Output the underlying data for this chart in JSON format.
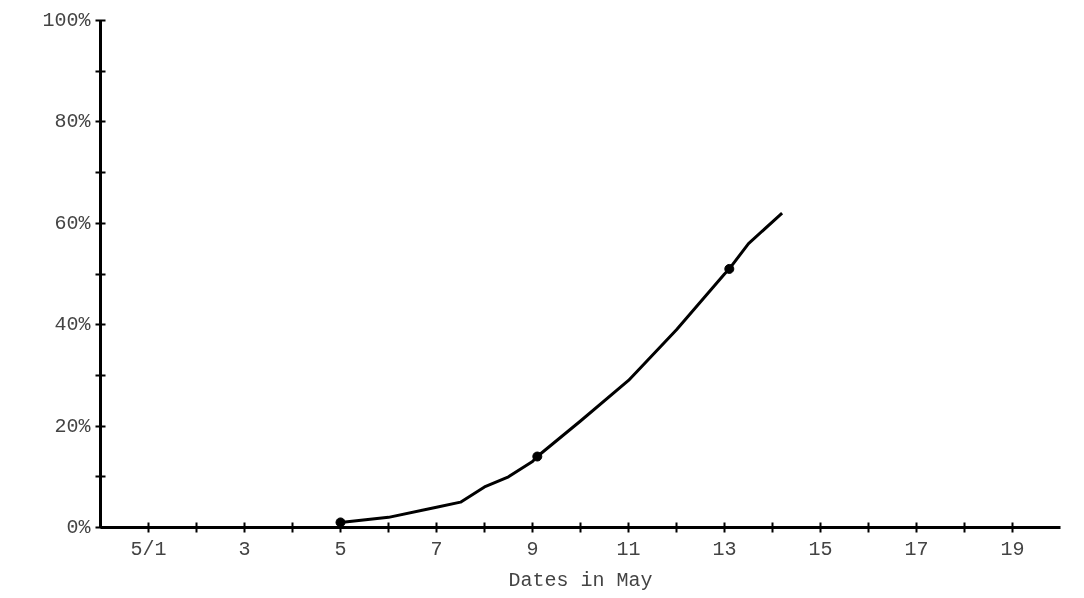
{
  "chart_data": {
    "type": "line",
    "xlabel": "Dates in May",
    "series": [
      {
        "color": "#000000",
        "x": [
          5,
          6,
          7,
          7.5,
          8,
          8.5,
          9,
          9.1,
          10,
          11,
          12,
          13,
          13.1,
          13.5,
          14.2
        ],
        "values": [
          1,
          2,
          4,
          5,
          8,
          10,
          13,
          14,
          21,
          29,
          39,
          50,
          51,
          56,
          62
        ]
      },
      {
        "type": "scatter",
        "marker": "circle",
        "color": "#000000",
        "x": [
          5,
          9.1,
          13.1
        ],
        "values": [
          1,
          14,
          51
        ]
      }
    ],
    "xlim": [
      0,
      20
    ],
    "xticks": [
      {
        "value": 1,
        "label": "5/1"
      },
      {
        "value": 2,
        "label": null
      },
      3,
      {
        "value": 4,
        "label": null
      },
      5,
      {
        "value": 6,
        "label": null
      },
      7,
      {
        "value": 8,
        "label": null
      },
      9,
      {
        "value": 10,
        "label": null
      },
      11,
      {
        "value": 12,
        "label": null
      },
      13,
      {
        "value": 14,
        "label": null
      },
      15,
      {
        "value": 16,
        "label": null
      },
      17,
      {
        "value": 18,
        "label": null
      },
      19
    ],
    "ylim": [
      0,
      100
    ],
    "yticks": [
      {
        "value": 0,
        "label": "0%"
      },
      {
        "value": 10,
        "label": null
      },
      {
        "value": 20,
        "label": "20%"
      },
      {
        "value": 30,
        "label": null
      },
      {
        "value": 40,
        "label": "40%"
      },
      {
        "value": 50,
        "label": null
      },
      {
        "value": 60,
        "label": "60%"
      },
      {
        "value": 70,
        "label": null
      },
      {
        "value": 80,
        "label": "80%"
      },
      {
        "value": 90,
        "label": null
      },
      {
        "value": 100,
        "label": "100%"
      }
    ],
    "grid": false,
    "line_style": "solid"
  }
}
